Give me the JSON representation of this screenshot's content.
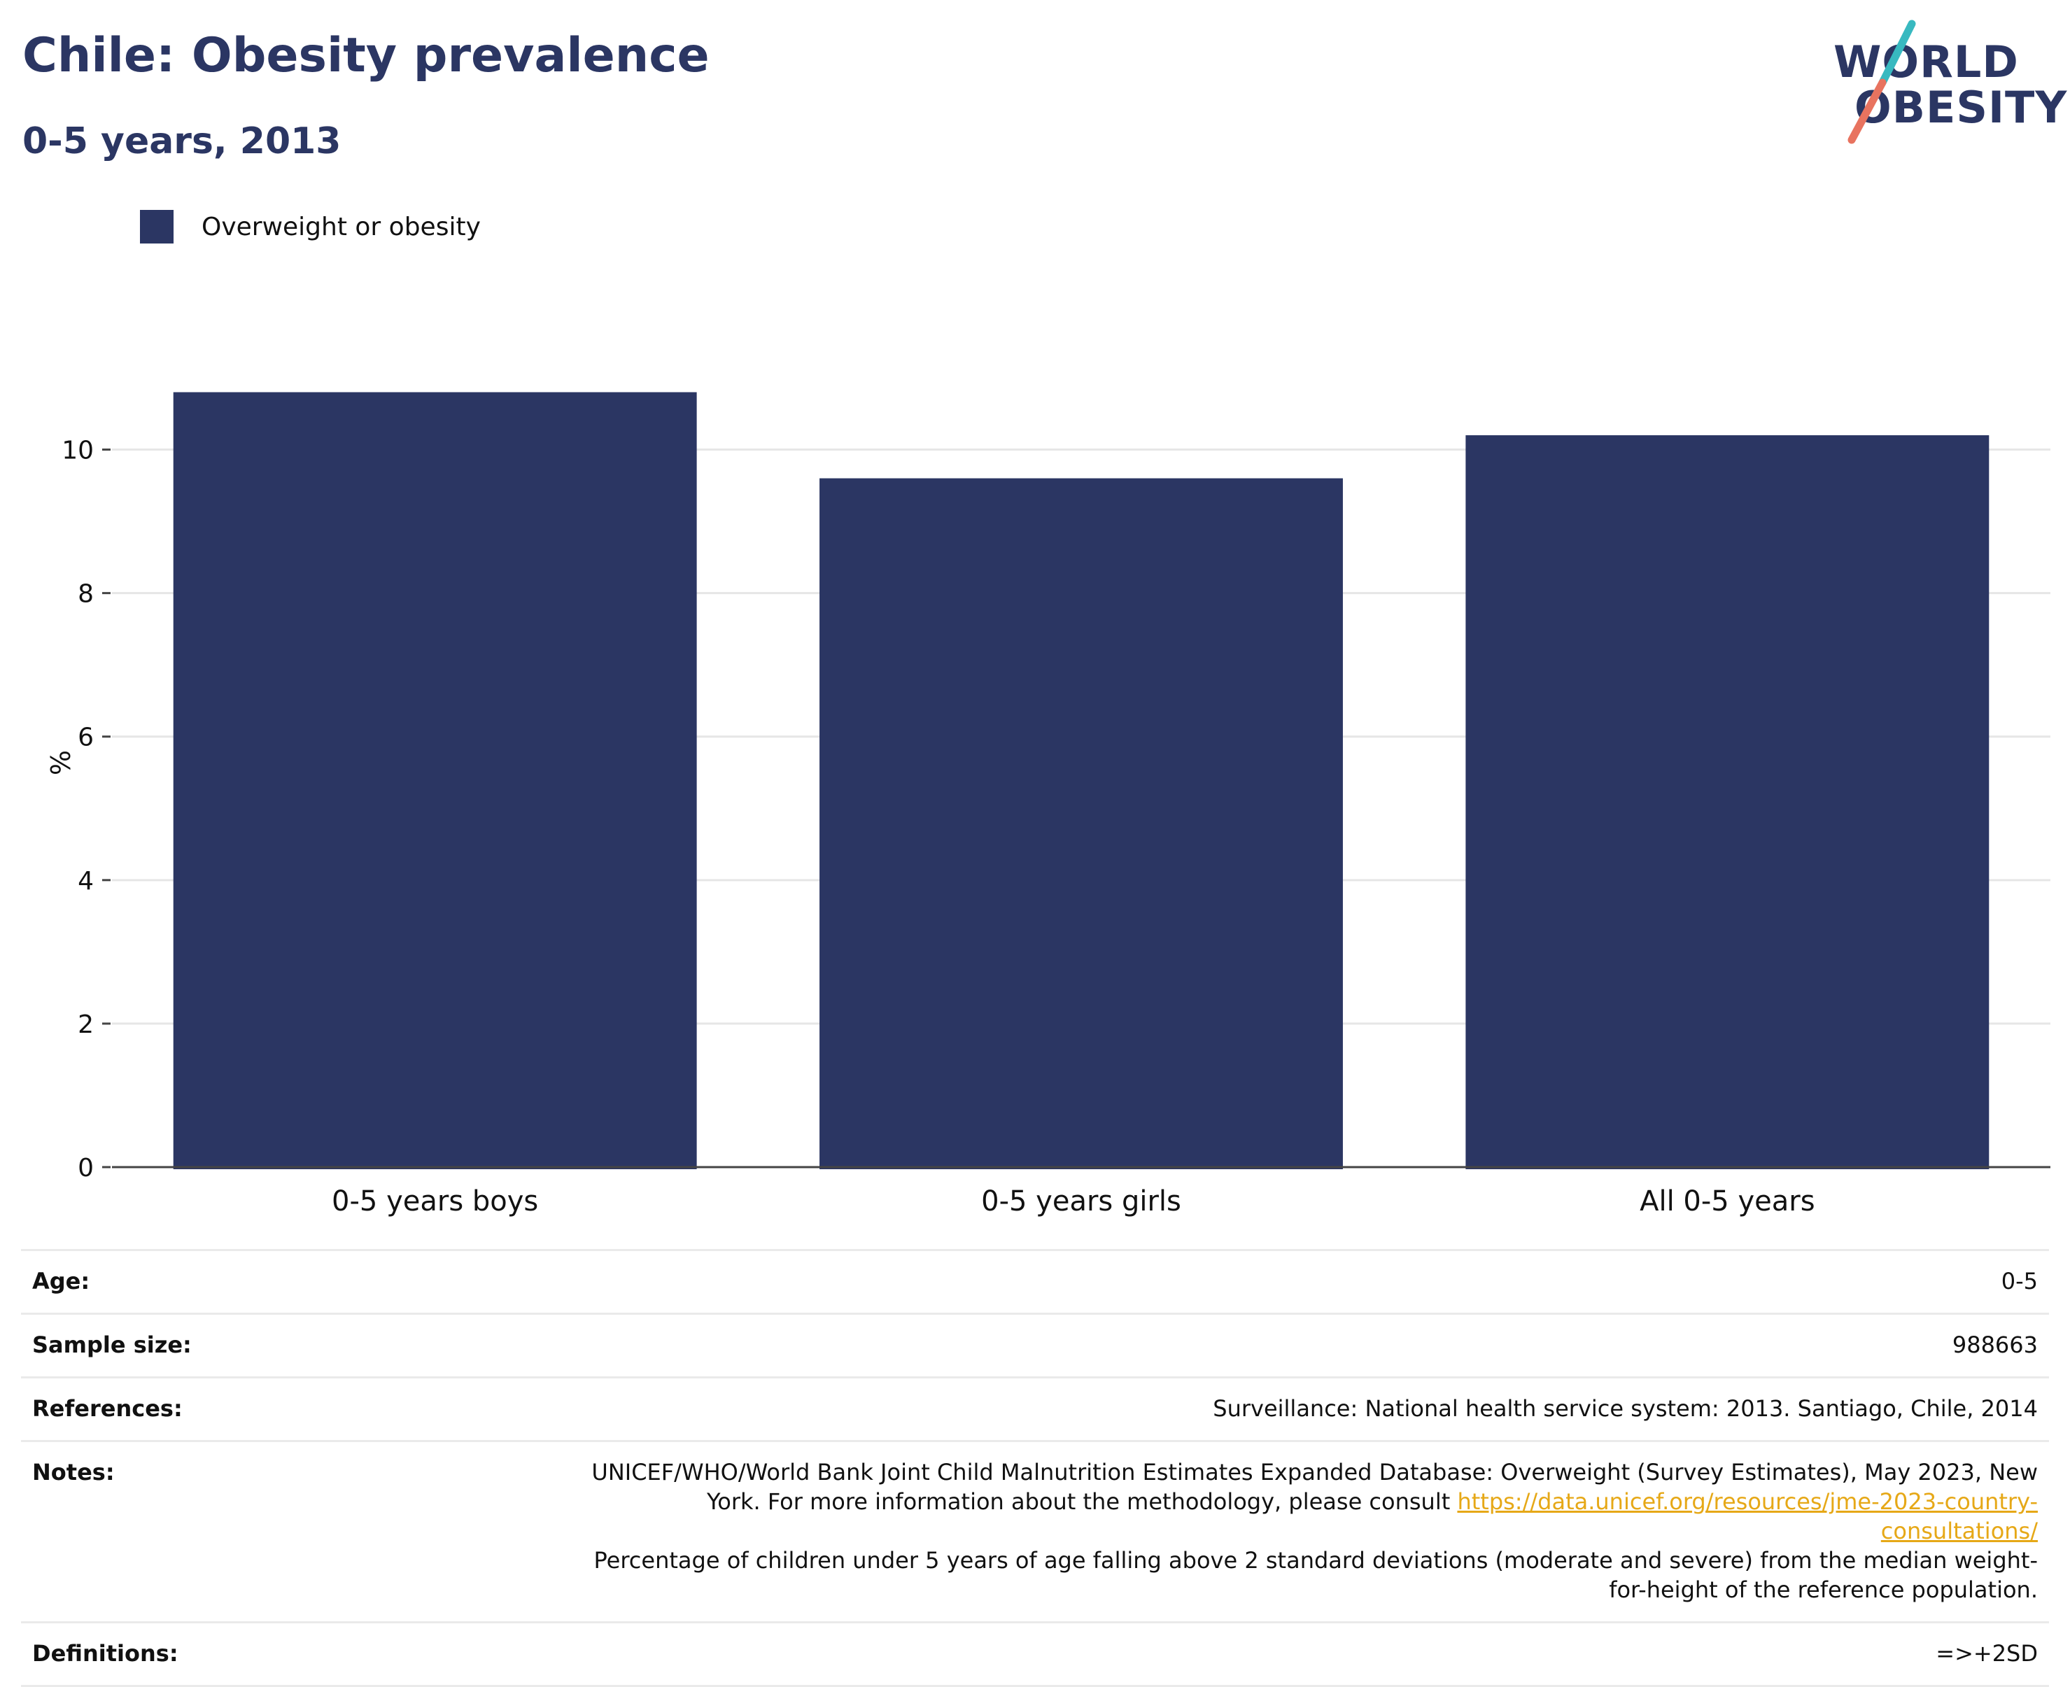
{
  "header": {
    "title": "Chile: Obesity prevalence",
    "subtitle": "0-5 years, 2013"
  },
  "logo": {
    "line1": "WORLD",
    "line2": "OBESITY",
    "colors": {
      "text": "#2b3663",
      "slash_top": "#38b9c0",
      "slash_bottom": "#e8735f"
    }
  },
  "legend": {
    "label": "Overweight or obesity",
    "color": "#2b3663"
  },
  "chart_data": {
    "type": "bar",
    "categories": [
      "0-5 years boys",
      "0-5 years girls",
      "All 0-5 years"
    ],
    "series": [
      {
        "name": "Overweight or obesity",
        "values": [
          10.8,
          9.6,
          10.2
        ],
        "color": "#2b3663"
      }
    ],
    "ylabel": "%",
    "ylim": [
      0,
      11
    ],
    "yticks": [
      0,
      2,
      4,
      6,
      8,
      10
    ],
    "grid": true,
    "legend_position": "top-left"
  },
  "details": {
    "age_label": "Age:",
    "age_value": "0-5",
    "sample_label": "Sample size:",
    "sample_value": "988663",
    "references_label": "References:",
    "references_value": "Surveillance: National health service system: 2013. Santiago, Chile, 2014",
    "notes_label": "Notes:",
    "notes_text1": "UNICEF/WHO/World Bank Joint Child Malnutrition Estimates Expanded Database: Overweight (Survey Estimates), May 2023, New York. For more information about the methodology, please consult ",
    "notes_link": "https://data.unicef.org/resources/jme-2023-country-consultations/",
    "notes_text2": "Percentage of children under 5 years of age falling above 2 standard deviations (moderate and severe) from the median weight-for-height of the reference population.",
    "definitions_label": "Definitions:",
    "definitions_value": "=>+2SD"
  }
}
